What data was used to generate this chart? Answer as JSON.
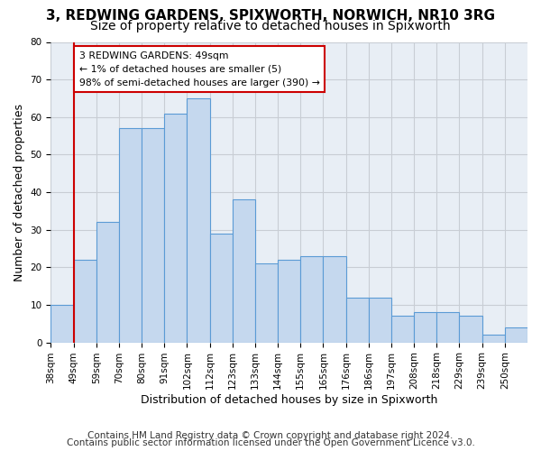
{
  "title1": "3, REDWING GARDENS, SPIXWORTH, NORWICH, NR10 3RG",
  "title2": "Size of property relative to detached houses in Spixworth",
  "xlabel": "Distribution of detached houses by size in Spixworth",
  "ylabel": "Number of detached properties",
  "footnote1": "Contains HM Land Registry data © Crown copyright and database right 2024.",
  "footnote2": "Contains public sector information licensed under the Open Government Licence v3.0.",
  "bin_labels": [
    "38sqm",
    "49sqm",
    "59sqm",
    "70sqm",
    "80sqm",
    "91sqm",
    "102sqm",
    "112sqm",
    "123sqm",
    "133sqm",
    "144sqm",
    "155sqm",
    "165sqm",
    "176sqm",
    "186sqm",
    "197sqm",
    "208sqm",
    "218sqm",
    "229sqm",
    "239sqm",
    "250sqm"
  ],
  "bar_heights": [
    10,
    22,
    32,
    57,
    57,
    61,
    65,
    29,
    38,
    21,
    22,
    23,
    23,
    12,
    12,
    7,
    8,
    8,
    7,
    2,
    4
  ],
  "bar_color": "#c5d8ee",
  "bar_edge_color": "#5b9bd5",
  "marker_bin_index": 1,
  "marker_color": "#cc0000",
  "annotation_text": "3 REDWING GARDENS: 49sqm\n← 1% of detached houses are smaller (5)\n98% of semi-detached houses are larger (390) →",
  "annotation_box_facecolor": "#ffffff",
  "annotation_box_edgecolor": "#cc0000",
  "ylim": [
    0,
    80
  ],
  "yticks": [
    0,
    10,
    20,
    30,
    40,
    50,
    60,
    70,
    80
  ],
  "grid_color": "#c8cdd4",
  "bg_color": "#e8eef5",
  "title_fontsize": 11,
  "subtitle_fontsize": 10,
  "axis_label_fontsize": 9,
  "tick_fontsize": 7.5,
  "annotation_fontsize": 7.8,
  "footnote_fontsize": 7.5
}
